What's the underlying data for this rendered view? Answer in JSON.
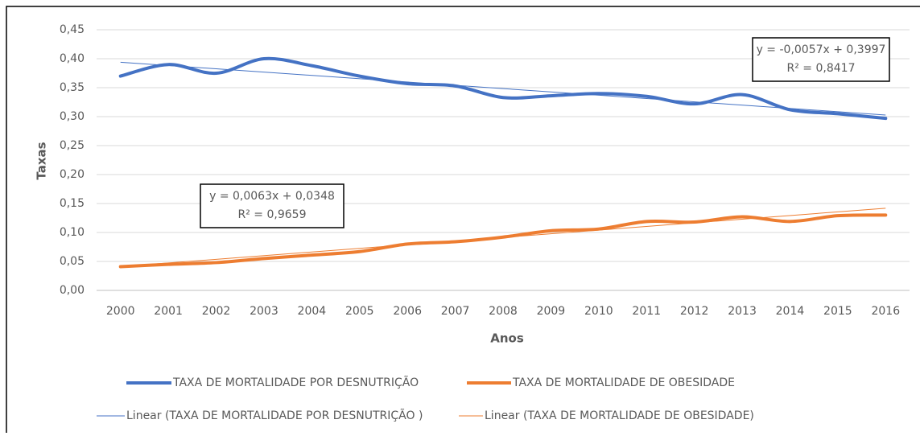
{
  "chart_data": {
    "type": "line",
    "xlabel": "Anos",
    "ylabel": "Taxas",
    "categories": [
      "2000",
      "2001",
      "2002",
      "2003",
      "2004",
      "2005",
      "2006",
      "2007",
      "2008",
      "2009",
      "2010",
      "2011",
      "2012",
      "2013",
      "2014",
      "2015",
      "2016"
    ],
    "series": [
      {
        "name": "TAXA DE MORTALIDADE POR DESNUTRIÇÃO",
        "color": "#4472c4",
        "values": [
          0.37,
          0.39,
          0.375,
          0.4,
          0.388,
          0.37,
          0.357,
          0.353,
          0.333,
          0.336,
          0.34,
          0.335,
          0.322,
          0.338,
          0.312,
          0.305,
          0.297
        ],
        "trend": {
          "name": "Linear (TAXA DE MORTALIDADE POR DESNUTRIÇÃO )",
          "slope": -0.0057,
          "intercept": 0.3997,
          "equation": "y = -0,0057x + 0,3997",
          "r2": "R² = 0,8417"
        }
      },
      {
        "name": "TAXA DE MORTALIDADE DE OBESIDADE",
        "color": "#ed7d31",
        "values": [
          0.041,
          0.045,
          0.048,
          0.055,
          0.061,
          0.067,
          0.08,
          0.084,
          0.092,
          0.103,
          0.106,
          0.119,
          0.118,
          0.127,
          0.119,
          0.129,
          0.13
        ],
        "trend": {
          "name": "Linear (TAXA DE MORTALIDADE DE OBESIDADE)",
          "slope": 0.0063,
          "intercept": 0.0348,
          "equation": "y = 0,0063x + 0,0348",
          "r2": "R² = 0,9659"
        }
      }
    ],
    "ylim": [
      0,
      0.45
    ],
    "yticks": [
      {
        "value": 0,
        "label": "0,00"
      },
      {
        "value": 0.05,
        "label": "0,05"
      },
      {
        "value": 0.1,
        "label": "0,10"
      },
      {
        "value": 0.15,
        "label": "0,15"
      },
      {
        "value": 0.2,
        "label": "0,20"
      },
      {
        "value": 0.25,
        "label": "0,25"
      },
      {
        "value": 0.3,
        "label": "0,30"
      },
      {
        "value": 0.35,
        "label": "0,35"
      },
      {
        "value": 0.4,
        "label": "0,40"
      },
      {
        "value": 0.45,
        "label": "0,45"
      }
    ],
    "grid": true
  }
}
